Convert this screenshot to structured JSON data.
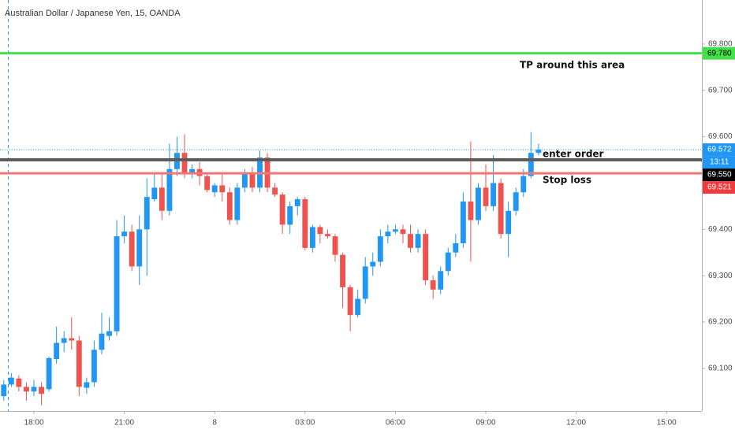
{
  "chart_data": {
    "type": "candlestick",
    "title": "Australian Dollar / Japanese Yen, 15, OANDA",
    "up_color": "#2196f3",
    "down_color": "#ef5350",
    "x": [
      0,
      1,
      2,
      3,
      4,
      5,
      6,
      7,
      8,
      9,
      10,
      11,
      12,
      13,
      14,
      15,
      16,
      17,
      18,
      19,
      20,
      21,
      22,
      23,
      24,
      25,
      26,
      27,
      28,
      29,
      30,
      31,
      32,
      33,
      34,
      35,
      36,
      37,
      38,
      39,
      40,
      41,
      42,
      43,
      44,
      45,
      46,
      47,
      48,
      49,
      50,
      51,
      52,
      53,
      54,
      55,
      56,
      57,
      58,
      59,
      60,
      61,
      62,
      63,
      64,
      65,
      66,
      67,
      68,
      69,
      70,
      71
    ],
    "open": [
      69.04,
      69.065,
      69.078,
      69.06,
      69.05,
      69.06,
      69.055,
      69.12,
      69.155,
      69.165,
      69.16,
      69.058,
      69.07,
      69.14,
      69.17,
      69.18,
      69.385,
      69.395,
      69.32,
      69.4,
      69.465,
      69.49,
      69.44,
      69.53,
      69.565,
      69.52,
      69.53,
      69.515,
      69.48,
      69.495,
      69.48,
      69.42,
      69.49,
      69.52,
      69.49,
      69.555,
      69.49,
      69.475,
      69.41,
      69.45,
      69.465,
      69.36,
      69.405,
      69.39,
      69.385,
      69.345,
      69.275,
      69.215,
      69.25,
      69.32,
      69.33,
      69.385,
      69.395,
      69.4,
      69.39,
      69.36,
      69.39,
      69.29,
      69.27,
      69.31,
      69.35,
      69.37,
      69.46,
      69.42,
      69.49,
      69.45,
      69.5,
      69.39,
      69.44,
      69.48,
      69.515,
      69.565
    ],
    "high": [
      69.075,
      69.09,
      69.085,
      69.07,
      69.075,
      69.07,
      69.125,
      69.19,
      69.18,
      69.21,
      69.17,
      69.08,
      69.16,
      69.22,
      69.21,
      69.42,
      69.43,
      69.41,
      69.43,
      69.51,
      69.52,
      69.52,
      69.585,
      69.6,
      69.605,
      69.54,
      69.545,
      69.52,
      69.5,
      69.52,
      69.49,
      69.5,
      69.53,
      69.535,
      69.57,
      69.565,
      69.5,
      69.48,
      69.46,
      69.47,
      69.47,
      69.41,
      69.41,
      69.4,
      69.39,
      69.35,
      69.28,
      69.27,
      69.34,
      69.35,
      69.4,
      69.41,
      69.41,
      69.41,
      69.41,
      69.4,
      69.4,
      69.3,
      69.32,
      69.36,
      69.39,
      69.48,
      69.59,
      69.5,
      69.54,
      69.56,
      69.51,
      69.46,
      69.49,
      69.53,
      69.61,
      69.585
    ],
    "low": [
      69.03,
      69.06,
      69.05,
      69.03,
      69.04,
      69.02,
      69.05,
      69.11,
      69.135,
      69.14,
      69.04,
      69.045,
      69.06,
      69.13,
      69.16,
      69.17,
      69.37,
      69.31,
      69.28,
      69.3,
      69.46,
      69.42,
      69.43,
      69.515,
      69.51,
      69.51,
      69.495,
      69.48,
      69.47,
      69.46,
      69.41,
      69.41,
      69.48,
      69.48,
      69.48,
      69.48,
      69.47,
      69.39,
      69.39,
      69.43,
      69.355,
      69.35,
      69.37,
      69.38,
      69.33,
      69.23,
      69.18,
      69.21,
      69.24,
      69.3,
      69.32,
      69.37,
      69.39,
      69.37,
      69.35,
      69.35,
      69.28,
      69.25,
      69.26,
      69.3,
      69.34,
      69.36,
      69.33,
      69.41,
      69.44,
      69.44,
      69.38,
      69.34,
      69.43,
      69.47,
      69.51,
      69.56
    ],
    "close": [
      69.065,
      69.08,
      69.06,
      69.05,
      69.06,
      69.045,
      69.122,
      69.155,
      69.165,
      69.16,
      69.06,
      69.07,
      69.14,
      69.175,
      69.18,
      69.385,
      69.395,
      69.32,
      69.4,
      69.47,
      69.49,
      69.44,
      69.53,
      69.565,
      69.52,
      69.53,
      69.515,
      69.485,
      69.495,
      69.48,
      69.42,
      69.49,
      69.52,
      69.49,
      69.555,
      69.49,
      69.475,
      69.41,
      69.45,
      69.465,
      69.36,
      69.405,
      69.39,
      69.385,
      69.345,
      69.275,
      69.215,
      69.25,
      69.32,
      69.33,
      69.385,
      69.395,
      69.4,
      69.39,
      69.36,
      69.39,
      69.29,
      69.27,
      69.31,
      69.35,
      69.37,
      69.46,
      69.42,
      69.49,
      69.45,
      69.5,
      69.39,
      69.44,
      69.48,
      69.515,
      69.565,
      69.572
    ],
    "xlim": [
      -0.503,
      92.69
    ],
    "xticks": [
      {
        "value": 4,
        "label": "18:00"
      },
      {
        "value": 16,
        "label": "21:00"
      },
      {
        "value": 28,
        "label": "8"
      },
      {
        "value": 40,
        "label": "03:00"
      },
      {
        "value": 52,
        "label": "06:00"
      },
      {
        "value": 64,
        "label": "09:00"
      },
      {
        "value": 76,
        "label": "12:00"
      },
      {
        "value": 88,
        "label": "15:00"
      }
    ],
    "ylim": [
      69.008,
      69.895
    ],
    "yticks": [
      {
        "value": 69.8,
        "label": "69.800"
      },
      {
        "value": 69.7,
        "label": "69.700"
      },
      {
        "value": 69.6,
        "label": "69.600"
      },
      {
        "value": 69.4,
        "label": "69.400"
      },
      {
        "value": 69.3,
        "label": "69.300"
      },
      {
        "value": 69.2,
        "label": "69.200"
      },
      {
        "value": 69.1,
        "label": "69.100"
      }
    ],
    "lines": [
      {
        "value": 69.78,
        "label": "69.780",
        "color": "#44e04a",
        "text_color": "#000"
      },
      {
        "value": 69.572,
        "color": "#2196f3",
        "text_color": "#fff",
        "dotted": true,
        "countdown": "13:11"
      },
      {
        "value": 69.55,
        "label": "69.550",
        "color": "#000000",
        "line_color": "#5d5d5d",
        "text_color": "#fff"
      },
      {
        "value": 69.521,
        "label": "69.521",
        "color": "#ef3b3b",
        "line_color": "#ef7878",
        "text_color": "#fff"
      }
    ],
    "annotations": [
      "TP around this area",
      "enter order",
      "Stop loss"
    ]
  }
}
